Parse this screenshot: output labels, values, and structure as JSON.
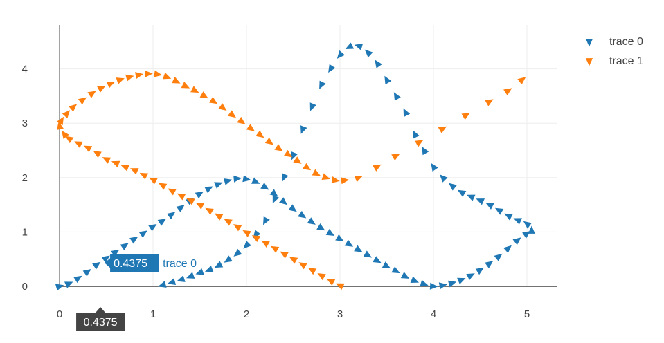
{
  "chart_data": {
    "type": "scatter",
    "xlim": [
      0,
      5.3
    ],
    "ylim": [
      0,
      4.75
    ],
    "x_ticks": [
      0,
      1,
      2,
      3,
      4,
      5
    ],
    "y_ticks": [
      0,
      1,
      2,
      3,
      4
    ],
    "grid": true,
    "legend_position": "top-right",
    "marker_symbol": "triangle",
    "series": [
      {
        "name": "trace 0",
        "color": "#1f77b4",
        "x": [
          0,
          0.1,
          0.2,
          0.3,
          0.4,
          0.5,
          0.6,
          0.7,
          0.8,
          0.9,
          1.0,
          1.1,
          1.2,
          1.3,
          1.4,
          1.5,
          1.6,
          1.7,
          1.8,
          1.9,
          2.0,
          2.1,
          2.2,
          2.3,
          2.4,
          2.5,
          2.6,
          2.7,
          2.8,
          2.9,
          3.0,
          3.1,
          3.2,
          3.3,
          3.4,
          3.5,
          3.6,
          3.7,
          3.8,
          3.9,
          4.0,
          4.1,
          4.2,
          4.3,
          4.4,
          4.5,
          4.6,
          4.7,
          4.8,
          4.9,
          5.0,
          5.05,
          5.0,
          4.9,
          4.8,
          4.7,
          4.6,
          4.5,
          4.4,
          4.3,
          4.2,
          4.1,
          4.0,
          3.9,
          3.8,
          3.7,
          3.6,
          3.5,
          3.4,
          3.3,
          3.2,
          3.1,
          3.0,
          2.9,
          2.8,
          2.7,
          2.6,
          2.5,
          2.4,
          2.3,
          2.2,
          2.1,
          2.0,
          1.9,
          1.8,
          1.7,
          1.6,
          1.5,
          1.4,
          1.3,
          1.2,
          1.1
        ],
        "y": [
          0.0,
          0.05,
          0.15,
          0.27,
          0.4,
          0.52,
          0.63,
          0.75,
          0.87,
          0.98,
          1.1,
          1.2,
          1.32,
          1.45,
          1.58,
          1.7,
          1.8,
          1.88,
          1.94,
          1.98,
          1.97,
          1.92,
          1.82,
          1.7,
          1.55,
          1.42,
          1.3,
          1.18,
          1.07,
          0.97,
          0.87,
          0.77,
          0.67,
          0.57,
          0.47,
          0.37,
          0.28,
          0.18,
          0.1,
          0.04,
          0.0,
          0.02,
          0.06,
          0.12,
          0.2,
          0.3,
          0.42,
          0.55,
          0.7,
          0.85,
          0.97,
          1.03,
          1.15,
          1.22,
          1.3,
          1.4,
          1.5,
          1.58,
          1.65,
          1.73,
          1.85,
          2.0,
          2.2,
          2.5,
          2.8,
          3.2,
          3.5,
          3.8,
          4.1,
          4.3,
          4.42,
          4.4,
          4.25,
          4.0,
          3.7,
          3.3,
          2.88,
          2.4,
          2.0,
          1.6,
          1.2,
          0.95,
          0.75,
          0.6,
          0.48,
          0.38,
          0.3,
          0.25,
          0.18,
          0.12,
          0.07,
          0.02
        ]
      },
      {
        "name": "trace 1",
        "color": "#ff7f0e",
        "x": [
          3.0,
          2.9,
          2.8,
          2.7,
          2.6,
          2.5,
          2.4,
          2.3,
          2.2,
          2.1,
          2.0,
          1.9,
          1.8,
          1.7,
          1.6,
          1.5,
          1.4,
          1.3,
          1.2,
          1.1,
          1.0,
          0.9,
          0.8,
          0.7,
          0.6,
          0.5,
          0.4,
          0.3,
          0.2,
          0.1,
          0.05,
          0.0,
          0.02,
          0.08,
          0.15,
          0.25,
          0.35,
          0.45,
          0.55,
          0.65,
          0.75,
          0.85,
          0.95,
          1.05,
          1.15,
          1.25,
          1.35,
          1.45,
          1.55,
          1.65,
          1.75,
          1.85,
          1.95,
          2.05,
          2.15,
          2.25,
          2.35,
          2.45,
          2.55,
          2.65,
          2.75,
          2.85,
          2.95,
          3.05,
          3.2,
          3.4,
          3.6,
          3.85,
          4.1,
          4.35,
          4.6,
          4.8,
          4.95
        ],
        "y": [
          0.02,
          0.1,
          0.2,
          0.3,
          0.4,
          0.5,
          0.6,
          0.7,
          0.8,
          0.9,
          0.99,
          1.1,
          1.2,
          1.3,
          1.4,
          1.5,
          1.58,
          1.67,
          1.76,
          1.86,
          1.96,
          2.05,
          2.14,
          2.2,
          2.27,
          2.34,
          2.45,
          2.55,
          2.63,
          2.72,
          2.8,
          2.95,
          3.05,
          3.18,
          3.3,
          3.43,
          3.55,
          3.65,
          3.73,
          3.8,
          3.85,
          3.89,
          3.91,
          3.9,
          3.85,
          3.77,
          3.68,
          3.6,
          3.5,
          3.4,
          3.28,
          3.15,
          3.03,
          2.9,
          2.78,
          2.65,
          2.53,
          2.42,
          2.3,
          2.18,
          2.07,
          2.0,
          1.95,
          1.95,
          2.0,
          2.2,
          2.4,
          2.65,
          2.9,
          3.15,
          3.4,
          3.6,
          3.8
        ]
      }
    ],
    "hover": {
      "x_label": "0.4375",
      "point_label": "0.4375",
      "trace_label": "trace 0",
      "x": 0.4375,
      "y": 0.43
    }
  }
}
